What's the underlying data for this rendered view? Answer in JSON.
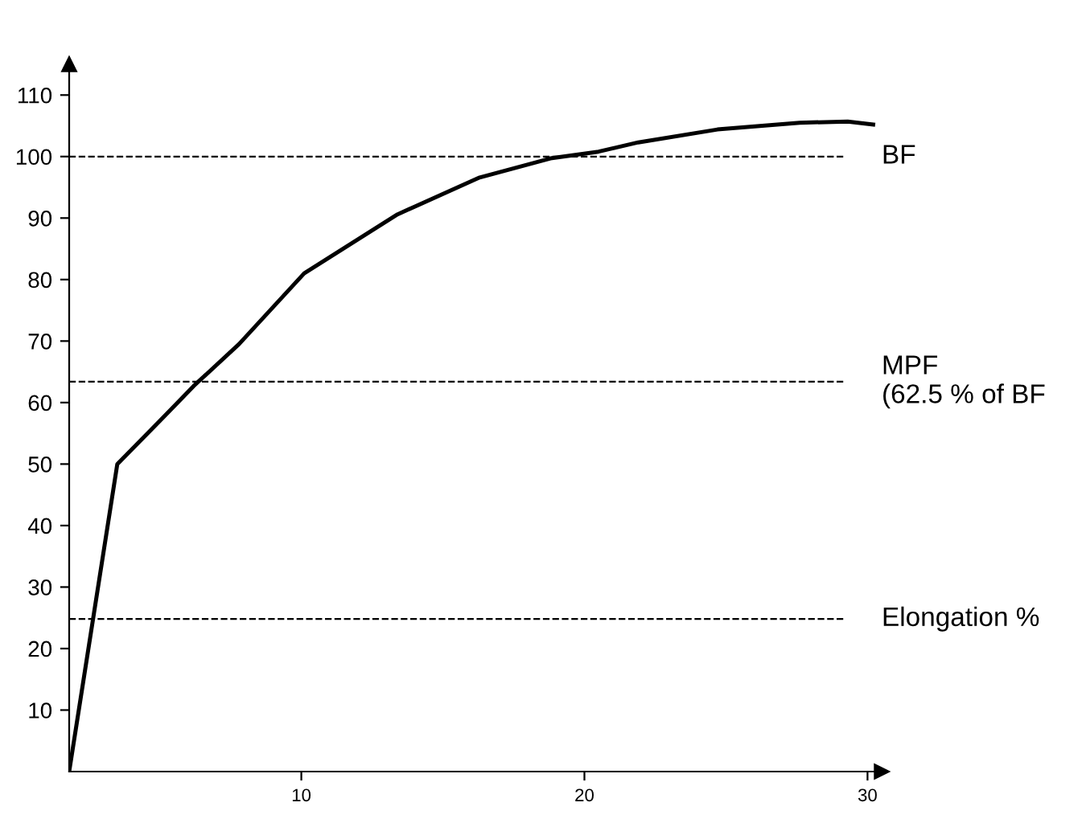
{
  "chart_data": {
    "type": "line",
    "xlim": [
      1.8,
      30.5
    ],
    "ylim": [
      0,
      115
    ],
    "xticks": [
      10,
      20,
      30
    ],
    "yticks": [
      10,
      20,
      30,
      40,
      50,
      60,
      70,
      80,
      90,
      100,
      110
    ],
    "grid": false,
    "marker": "none",
    "line_style": "solid",
    "series": [
      {
        "color": "#000000",
        "x": [
          1.8,
          3.5,
          5.0,
          6.2,
          7.8,
          10.1,
          13.4,
          16.3,
          18.8,
          20.5,
          21.9,
          24.7,
          27.6,
          29.3,
          30.2
        ],
        "values": [
          0,
          50,
          57,
          62.7,
          69.5,
          81,
          90.6,
          96.6,
          99.7,
          100.8,
          102.3,
          104.4,
          105.5,
          105.7,
          105.2
        ]
      }
    ],
    "ref_lines": [
      {
        "axis": "y",
        "value": 100,
        "label": "BF",
        "color": "#000000",
        "line_style": "dashed"
      },
      {
        "axis": "y",
        "value": 63.4,
        "label": "MPF\n(62.5 % of BF",
        "color": "#000000",
        "line_style": "dashed"
      },
      {
        "axis": "y",
        "value": 24.8,
        "label": "Elongation %",
        "color": "#000000",
        "line_style": "dashed"
      }
    ]
  }
}
